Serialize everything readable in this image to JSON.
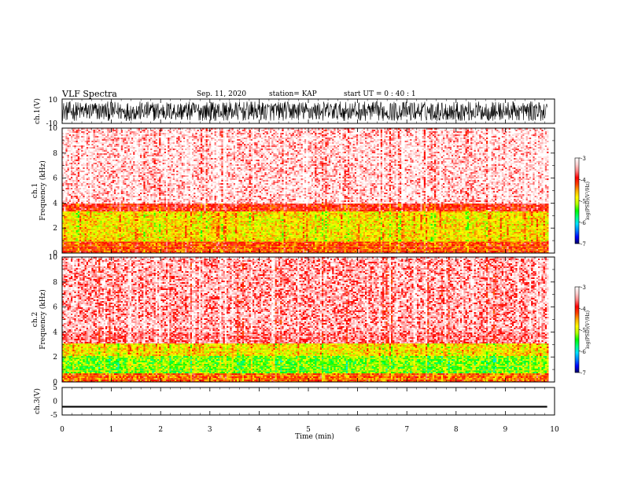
{
  "header": {
    "title": "VLF Spectra",
    "date": "Sep. 11, 2020",
    "station": "station= KAP",
    "start_time": "start  UT =   0 : 40 : 1"
  },
  "colors": {
    "colorbar": [
      "#000066",
      "#0000ff",
      "#0080ff",
      "#00e0ff",
      "#00ff80",
      "#00ff00",
      "#b0ff00",
      "#ffff00",
      "#ffb000",
      "#ff4000",
      "#ff0000",
      "#ff8080",
      "#ffd0d0",
      "#ffffff"
    ]
  },
  "chart_data": [
    {
      "id": "ch1-waveform",
      "type": "line",
      "ylabel": "ch.1(V)",
      "ylim": [
        -10,
        10
      ],
      "yticks": [
        "10",
        "-10"
      ],
      "xlim": [
        0,
        10
      ],
      "description_values": {
        "typical_range_V": [
          -8,
          8
        ]
      }
    },
    {
      "id": "ch1-spectrogram",
      "type": "heatmap",
      "ylabel_top": "ch.1",
      "ylabel": "Frequency (kHz)",
      "ylim": [
        0,
        10
      ],
      "yticks": [
        "0",
        "2",
        "4",
        "6",
        "8",
        "10"
      ],
      "xlim": [
        0,
        10
      ],
      "data_end_min": 9.85,
      "colorbar": {
        "label": "log(PSD)(V²/Hz)",
        "ticks": [
          "-3",
          "-4",
          "-5",
          "-6",
          "-7"
        ],
        "range": [
          -7,
          -3
        ]
      },
      "bands": [
        {
          "freq_kHz": [
            0,
            1.0
          ],
          "level": -4.2
        },
        {
          "freq_kHz": [
            1.0,
            3.4
          ],
          "level": -4.8
        },
        {
          "freq_kHz": [
            3.4,
            4.0
          ],
          "level": -4.0
        },
        {
          "freq_kHz": [
            4.0,
            10
          ],
          "level": -3.4
        }
      ]
    },
    {
      "id": "ch2-spectrogram",
      "type": "heatmap",
      "ylabel_top": "ch.2",
      "ylabel": "Frequency (kHz)",
      "ylim": [
        0,
        10
      ],
      "yticks": [
        "0",
        "2",
        "4",
        "6",
        "8",
        "10"
      ],
      "xlim": [
        0,
        10
      ],
      "data_end_min": 9.85,
      "colorbar": {
        "label": "log(PSD)(V²/Hz)",
        "ticks": [
          "-3",
          "-4",
          "-5",
          "-6",
          "-7"
        ],
        "range": [
          -7,
          -3
        ]
      },
      "bands": [
        {
          "freq_kHz": [
            0,
            0.8
          ],
          "level": -4.3
        },
        {
          "freq_kHz": [
            0.8,
            2.2
          ],
          "level": -5.3
        },
        {
          "freq_kHz": [
            2.2,
            3.2
          ],
          "level": -4.8
        },
        {
          "freq_kHz": [
            3.2,
            10
          ],
          "level": -3.6
        }
      ]
    },
    {
      "id": "ch3-waveform",
      "type": "line",
      "ylabel": "ch.3(V)",
      "ylim": [
        -5,
        5
      ],
      "yticks": [
        "5",
        "0",
        "-5"
      ],
      "xlim": [
        0,
        10
      ],
      "level_V": [
        -0.3,
        0.3
      ]
    }
  ],
  "xaxis": {
    "label": "Time  (min)",
    "ticks": [
      "0",
      "1",
      "2",
      "3",
      "4",
      "5",
      "6",
      "7",
      "8",
      "9",
      "10"
    ],
    "range": [
      0,
      10
    ]
  }
}
